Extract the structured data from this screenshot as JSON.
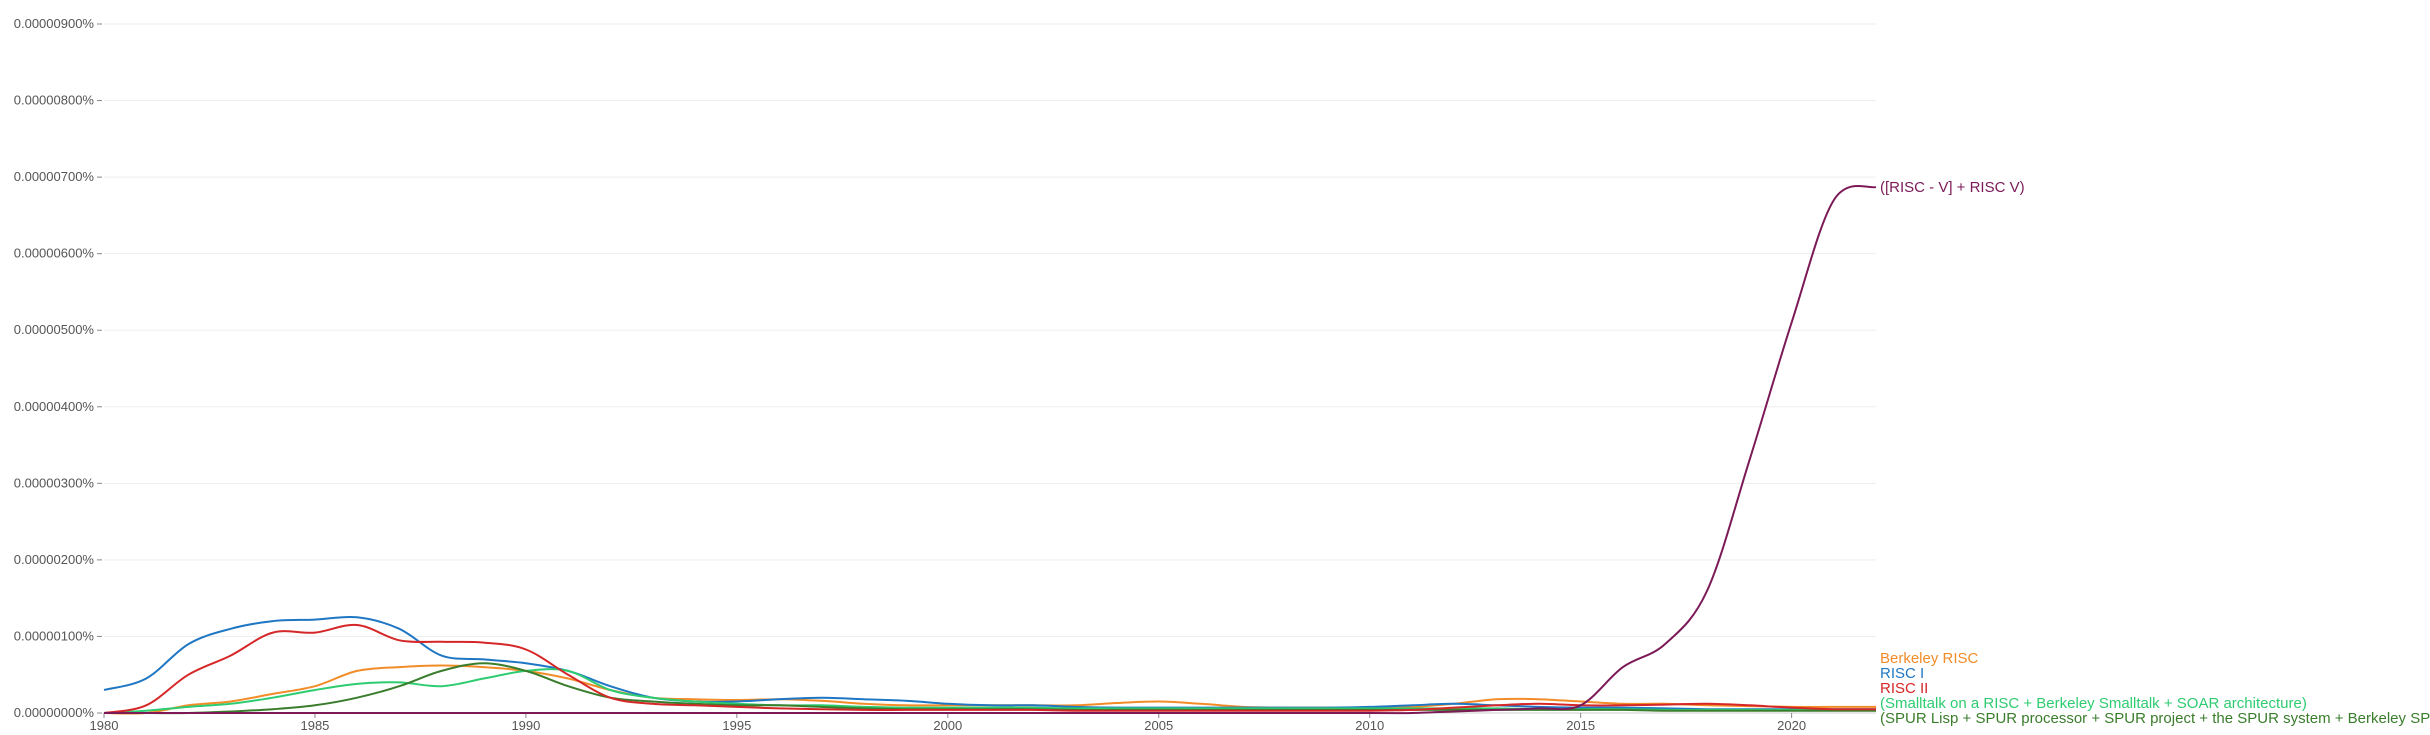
{
  "chart_data": {
    "type": "line",
    "title": "",
    "xlabel": "",
    "ylabel": "",
    "xlim": [
      1980,
      2022
    ],
    "ylim": [
      0,
      9e-06
    ],
    "grid": true,
    "legend": "inline labels at right end of each line",
    "x_ticks": [
      1980,
      1985,
      1990,
      1995,
      2000,
      2005,
      2010,
      2015,
      2020
    ],
    "x_tick_labels": [
      "1980",
      "1985",
      "1990",
      "1995",
      "2000",
      "2005",
      "2010",
      "2015",
      "2020"
    ],
    "y_ticks": [
      0,
      1e-06,
      2e-06,
      3e-06,
      4e-06,
      5e-06,
      6e-06,
      7e-06,
      8e-06,
      9e-06
    ],
    "y_tick_labels": [
      "0.00000000%",
      "0.00000100%",
      "0.00000200%",
      "0.00000300%",
      "0.00000400%",
      "0.00000500%",
      "0.00000600%",
      "0.00000700%",
      "0.00000800%",
      "0.00000900%"
    ],
    "series": [
      {
        "name": "Berkeley RISC",
        "color": "#f28c28",
        "points": [
          [
            1980,
            0
          ],
          [
            1981,
            0
          ],
          [
            1982,
            1e-07
          ],
          [
            1983,
            1.5e-07
          ],
          [
            1984,
            2.5e-07
          ],
          [
            1985,
            3.5e-07
          ],
          [
            1986,
            5.5e-07
          ],
          [
            1987,
            6e-07
          ],
          [
            1988,
            6.2e-07
          ],
          [
            1989,
            6e-07
          ],
          [
            1990,
            5.5e-07
          ],
          [
            1991,
            4.5e-07
          ],
          [
            1992,
            3e-07
          ],
          [
            1993,
            2e-07
          ],
          [
            1994,
            1.8e-07
          ],
          [
            1995,
            1.7e-07
          ],
          [
            1996,
            1.8e-07
          ],
          [
            1997,
            1.6e-07
          ],
          [
            1998,
            1.2e-07
          ],
          [
            1999,
            1e-07
          ],
          [
            2000,
            1e-07
          ],
          [
            2001,
            1e-07
          ],
          [
            2002,
            1e-07
          ],
          [
            2003,
            1e-07
          ],
          [
            2004,
            1.3e-07
          ],
          [
            2005,
            1.5e-07
          ],
          [
            2006,
            1.2e-07
          ],
          [
            2007,
            8e-08
          ],
          [
            2008,
            7e-08
          ],
          [
            2009,
            7e-08
          ],
          [
            2010,
            7e-08
          ],
          [
            2011,
            8e-08
          ],
          [
            2012,
            1.2e-07
          ],
          [
            2013,
            1.8e-07
          ],
          [
            2014,
            1.8e-07
          ],
          [
            2015,
            1.5e-07
          ],
          [
            2016,
            1.2e-07
          ],
          [
            2017,
            1.2e-07
          ],
          [
            2018,
            1e-07
          ],
          [
            2019,
            9e-08
          ],
          [
            2020,
            8e-08
          ],
          [
            2021,
            8e-08
          ],
          [
            2022,
            8e-08
          ]
        ]
      },
      {
        "name": "RISC I",
        "color": "#1f77c4",
        "points": [
          [
            1980,
            3e-07
          ],
          [
            1981,
            4.5e-07
          ],
          [
            1982,
            9e-07
          ],
          [
            1983,
            1.1e-06
          ],
          [
            1984,
            1.2e-06
          ],
          [
            1985,
            1.22e-06
          ],
          [
            1986,
            1.25e-06
          ],
          [
            1987,
            1.1e-06
          ],
          [
            1988,
            7.5e-07
          ],
          [
            1989,
            7e-07
          ],
          [
            1990,
            6.5e-07
          ],
          [
            1991,
            5.5e-07
          ],
          [
            1992,
            3.5e-07
          ],
          [
            1993,
            2e-07
          ],
          [
            1994,
            1.5e-07
          ],
          [
            1995,
            1.5e-07
          ],
          [
            1996,
            1.8e-07
          ],
          [
            1997,
            2e-07
          ],
          [
            1998,
            1.8e-07
          ],
          [
            1999,
            1.6e-07
          ],
          [
            2000,
            1.2e-07
          ],
          [
            2001,
            1e-07
          ],
          [
            2002,
            1e-07
          ],
          [
            2003,
            8e-08
          ],
          [
            2004,
            7e-08
          ],
          [
            2005,
            7e-08
          ],
          [
            2006,
            7e-08
          ],
          [
            2007,
            7e-08
          ],
          [
            2008,
            7e-08
          ],
          [
            2009,
            7e-08
          ],
          [
            2010,
            8e-08
          ],
          [
            2011,
            1e-07
          ],
          [
            2012,
            1.2e-07
          ],
          [
            2013,
            1e-07
          ],
          [
            2014,
            8e-08
          ],
          [
            2015,
            7e-08
          ],
          [
            2016,
            7e-08
          ],
          [
            2017,
            6e-08
          ],
          [
            2018,
            5e-08
          ],
          [
            2019,
            5e-08
          ],
          [
            2020,
            5e-08
          ],
          [
            2021,
            5e-08
          ],
          [
            2022,
            5e-08
          ]
        ]
      },
      {
        "name": "(Smalltalk on a RISC + Berkeley Smalltalk + SOAR architecture)",
        "color": "#2ecc71",
        "points": [
          [
            1980,
            0
          ],
          [
            1981,
            3e-08
          ],
          [
            1982,
            8e-08
          ],
          [
            1983,
            1.2e-07
          ],
          [
            1984,
            2e-07
          ],
          [
            1985,
            3e-07
          ],
          [
            1986,
            3.8e-07
          ],
          [
            1987,
            4e-07
          ],
          [
            1988,
            3.5e-07
          ],
          [
            1989,
            4.5e-07
          ],
          [
            1990,
            5.5e-07
          ],
          [
            1991,
            5.5e-07
          ],
          [
            1992,
            3e-07
          ],
          [
            1993,
            2e-07
          ],
          [
            1994,
            1.5e-07
          ],
          [
            1995,
            1.2e-07
          ],
          [
            1996,
            1e-07
          ],
          [
            1997,
            1e-07
          ],
          [
            1998,
            8e-08
          ],
          [
            1999,
            7e-08
          ],
          [
            2000,
            7e-08
          ],
          [
            2001,
            7e-08
          ],
          [
            2002,
            7e-08
          ],
          [
            2003,
            6e-08
          ],
          [
            2004,
            6e-08
          ],
          [
            2005,
            6e-08
          ],
          [
            2006,
            6e-08
          ],
          [
            2007,
            6e-08
          ],
          [
            2008,
            6e-08
          ],
          [
            2009,
            6e-08
          ],
          [
            2010,
            6e-08
          ],
          [
            2011,
            6e-08
          ],
          [
            2012,
            6e-08
          ],
          [
            2013,
            6e-08
          ],
          [
            2014,
            5e-08
          ],
          [
            2015,
            5e-08
          ],
          [
            2016,
            5e-08
          ],
          [
            2017,
            4e-08
          ],
          [
            2018,
            4e-08
          ],
          [
            2019,
            4e-08
          ],
          [
            2020,
            4e-08
          ],
          [
            2021,
            4e-08
          ],
          [
            2022,
            4e-08
          ]
        ]
      },
      {
        "name": "(SPUR Lisp + SPUR processor + SPUR project + the SPUR system + Berkeley SPUR)",
        "color": "#3a7d2c",
        "points": [
          [
            1980,
            0
          ],
          [
            1981,
            0
          ],
          [
            1982,
            0
          ],
          [
            1983,
            2e-08
          ],
          [
            1984,
            5e-08
          ],
          [
            1985,
            1e-07
          ],
          [
            1986,
            2e-07
          ],
          [
            1987,
            3.5e-07
          ],
          [
            1988,
            5.5e-07
          ],
          [
            1989,
            6.5e-07
          ],
          [
            1990,
            5.5e-07
          ],
          [
            1991,
            3.5e-07
          ],
          [
            1992,
            2e-07
          ],
          [
            1993,
            1.5e-07
          ],
          [
            1994,
            1.2e-07
          ],
          [
            1995,
            1e-07
          ],
          [
            1996,
            1e-07
          ],
          [
            1997,
            8e-08
          ],
          [
            1998,
            6e-08
          ],
          [
            1999,
            5e-08
          ],
          [
            2000,
            5e-08
          ],
          [
            2001,
            5e-08
          ],
          [
            2002,
            5e-08
          ],
          [
            2003,
            4e-08
          ],
          [
            2004,
            4e-08
          ],
          [
            2005,
            4e-08
          ],
          [
            2006,
            4e-08
          ],
          [
            2007,
            4e-08
          ],
          [
            2008,
            4e-08
          ],
          [
            2009,
            4e-08
          ],
          [
            2010,
            4e-08
          ],
          [
            2011,
            4e-08
          ],
          [
            2012,
            4e-08
          ],
          [
            2013,
            4e-08
          ],
          [
            2014,
            4e-08
          ],
          [
            2015,
            4e-08
          ],
          [
            2016,
            4e-08
          ],
          [
            2017,
            3e-08
          ],
          [
            2018,
            3e-08
          ],
          [
            2019,
            3e-08
          ],
          [
            2020,
            3e-08
          ],
          [
            2021,
            3e-08
          ],
          [
            2022,
            3e-08
          ]
        ]
      },
      {
        "name": "RISC II",
        "color": "#d62728",
        "points": [
          [
            1980,
            0
          ],
          [
            1981,
            1e-07
          ],
          [
            1982,
            5e-07
          ],
          [
            1983,
            7.5e-07
          ],
          [
            1984,
            1.05e-06
          ],
          [
            1985,
            1.05e-06
          ],
          [
            1986,
            1.15e-06
          ],
          [
            1987,
            9.5e-07
          ],
          [
            1988,
            9.3e-07
          ],
          [
            1989,
            9.2e-07
          ],
          [
            1990,
            8.3e-07
          ],
          [
            1991,
            5e-07
          ],
          [
            1992,
            2e-07
          ],
          [
            1993,
            1.2e-07
          ],
          [
            1994,
            1e-07
          ],
          [
            1995,
            8e-08
          ],
          [
            1996,
            6e-08
          ],
          [
            1997,
            5e-08
          ],
          [
            1998,
            4e-08
          ],
          [
            1999,
            4e-08
          ],
          [
            2000,
            4e-08
          ],
          [
            2001,
            4e-08
          ],
          [
            2002,
            4e-08
          ],
          [
            2003,
            3e-08
          ],
          [
            2004,
            3e-08
          ],
          [
            2005,
            3e-08
          ],
          [
            2006,
            3e-08
          ],
          [
            2007,
            3e-08
          ],
          [
            2008,
            3e-08
          ],
          [
            2009,
            3e-08
          ],
          [
            2010,
            3e-08
          ],
          [
            2011,
            4e-08
          ],
          [
            2012,
            7e-08
          ],
          [
            2013,
            1e-07
          ],
          [
            2014,
            1.2e-07
          ],
          [
            2015,
            1e-07
          ],
          [
            2016,
            1e-07
          ],
          [
            2017,
            1.1e-07
          ],
          [
            2018,
            1.2e-07
          ],
          [
            2019,
            1e-07
          ],
          [
            2020,
            7e-08
          ],
          [
            2021,
            5e-08
          ],
          [
            2022,
            5e-08
          ]
        ]
      },
      {
        "name": "([RISC - V] + RISC V)",
        "color": "#7b1a57",
        "points": [
          [
            1980,
            0
          ],
          [
            1985,
            0
          ],
          [
            1990,
            0
          ],
          [
            1995,
            0
          ],
          [
            2000,
            0
          ],
          [
            2005,
            0
          ],
          [
            2010,
            0
          ],
          [
            2011,
            0
          ],
          [
            2012,
            2e-08
          ],
          [
            2013,
            4e-08
          ],
          [
            2014,
            6e-08
          ],
          [
            2015,
            1e-07
          ],
          [
            2016,
            6e-07
          ],
          [
            2017,
            9e-07
          ],
          [
            2018,
            1.6e-06
          ],
          [
            2019,
            3.3e-06
          ],
          [
            2020,
            5.1e-06
          ],
          [
            2021,
            6.7e-06
          ],
          [
            2022,
            6.87e-06
          ]
        ]
      }
    ]
  }
}
